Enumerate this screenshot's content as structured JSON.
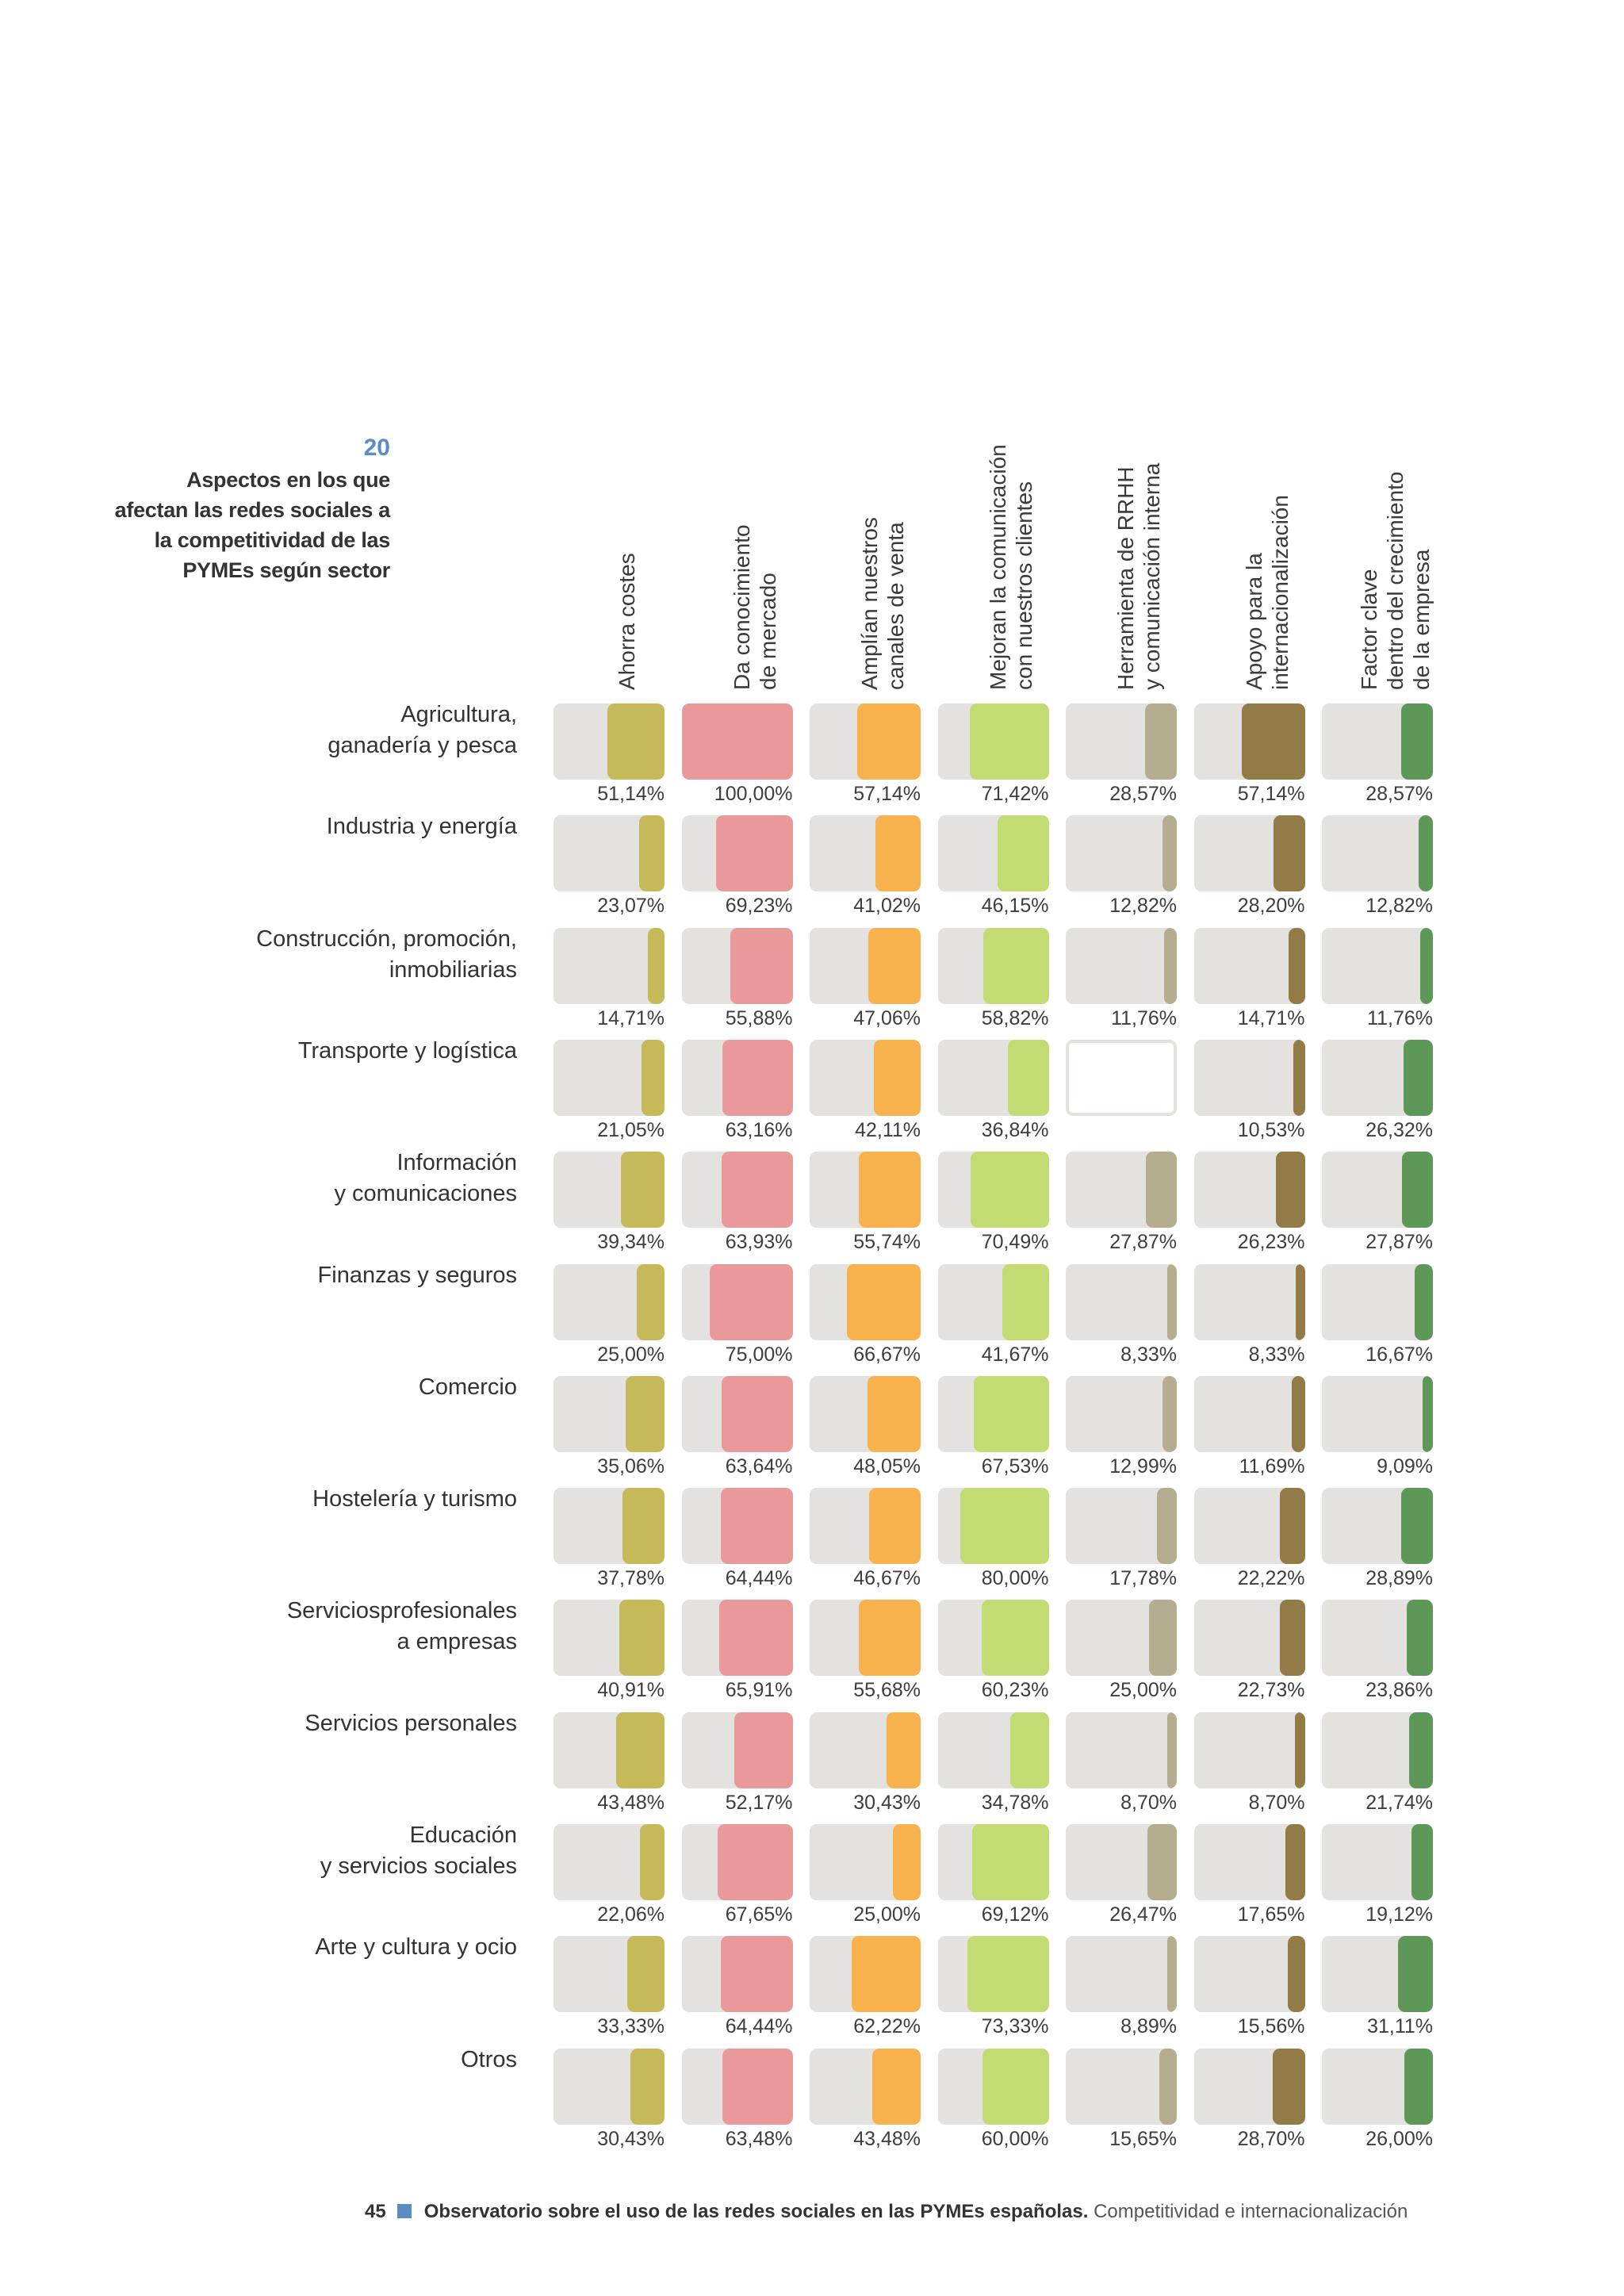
{
  "figure": {
    "number": "20",
    "title": "Aspectos en los que afectan las redes sociales a la competitividad de las PYMEs según sector"
  },
  "footer": {
    "page": "45",
    "bold_text": "Observatorio sobre el uso de las redes sociales en las PYMEs españolas.",
    "light_text": " Competitividad e internacionalización"
  },
  "chart_data": {
    "type": "heatmap",
    "title": "Aspectos en los que afectan las redes sociales a la competitividad de las PYMEs según sector",
    "columns": [
      {
        "label": "Ahorra costes",
        "color": "#c6b95a"
      },
      {
        "label": "Da conocimiento\nde mercado",
        "color": "#e9999a"
      },
      {
        "label": "Amplían nuestros\ncanales de venta",
        "color": "#f8b24d"
      },
      {
        "label": "Mejoran la comunicación\ncon nuestros clientes",
        "color": "#c3db73"
      },
      {
        "label": "Herramienta de RRHH\ny comunicación interna",
        "color": "#b4ad90"
      },
      {
        "label": "Apoyo para la\ninternacionalización",
        "color": "#937b48"
      },
      {
        "label": "Factor clave\ndentro del crecimiento\nde la empresa",
        "color": "#5e9858"
      }
    ],
    "rows": [
      {
        "label": "Agricultura,\nganadería y pesca",
        "values": [
          51.14,
          100.0,
          57.14,
          71.42,
          28.57,
          57.14,
          28.57
        ],
        "labels": [
          "51,14%",
          "100,00%",
          "57,14%",
          "71,42%",
          "28,57%",
          "57,14%",
          "28,57%"
        ]
      },
      {
        "label": "Industria y energía",
        "values": [
          23.07,
          69.23,
          41.02,
          46.15,
          12.82,
          28.2,
          12.82
        ],
        "labels": [
          "23,07%",
          "69,23%",
          "41,02%",
          "46,15%",
          "12,82%",
          "28,20%",
          "12,82%"
        ]
      },
      {
        "label": "Construcción, promoción,\ninmobiliarias",
        "values": [
          14.71,
          55.88,
          47.06,
          58.82,
          11.76,
          14.71,
          11.76
        ],
        "labels": [
          "14,71%",
          "55,88%",
          "47,06%",
          "58,82%",
          "11,76%",
          "14,71%",
          "11,76%"
        ]
      },
      {
        "label": "Transporte y logística",
        "values": [
          21.05,
          63.16,
          42.11,
          36.84,
          null,
          10.53,
          26.32
        ],
        "labels": [
          "21,05%",
          "63,16%",
          "42,11%",
          "36,84%",
          "",
          "10,53%",
          "26,32%"
        ]
      },
      {
        "label": "Información\ny comunicaciones",
        "values": [
          39.34,
          63.93,
          55.74,
          70.49,
          27.87,
          26.23,
          27.87
        ],
        "labels": [
          "39,34%",
          "63,93%",
          "55,74%",
          "70,49%",
          "27,87%",
          "26,23%",
          "27,87%"
        ]
      },
      {
        "label": "Finanzas y seguros",
        "values": [
          25.0,
          75.0,
          66.67,
          41.67,
          8.33,
          8.33,
          16.67
        ],
        "labels": [
          "25,00%",
          "75,00%",
          "66,67%",
          "41,67%",
          "8,33%",
          "8,33%",
          "16,67%"
        ]
      },
      {
        "label": "Comercio",
        "values": [
          35.06,
          63.64,
          48.05,
          67.53,
          12.99,
          11.69,
          9.09
        ],
        "labels": [
          "35,06%",
          "63,64%",
          "48,05%",
          "67,53%",
          "12,99%",
          "11,69%",
          "9,09%"
        ]
      },
      {
        "label": "Hostelería y turismo",
        "values": [
          37.78,
          64.44,
          46.67,
          80.0,
          17.78,
          22.22,
          28.89
        ],
        "labels": [
          "37,78%",
          "64,44%",
          "46,67%",
          "80,00%",
          "17,78%",
          "22,22%",
          "28,89%"
        ]
      },
      {
        "label": "Serviciosprofesionales\na empresas",
        "values": [
          40.91,
          65.91,
          55.68,
          60.23,
          25.0,
          22.73,
          23.86
        ],
        "labels": [
          "40,91%",
          "65,91%",
          "55,68%",
          "60,23%",
          "25,00%",
          "22,73%",
          "23,86%"
        ]
      },
      {
        "label": "Servicios personales",
        "values": [
          43.48,
          52.17,
          30.43,
          34.78,
          8.7,
          8.7,
          21.74
        ],
        "labels": [
          "43,48%",
          "52,17%",
          "30,43%",
          "34,78%",
          "8,70%",
          "8,70%",
          "21,74%"
        ]
      },
      {
        "label": "Educación\ny servicios sociales",
        "values": [
          22.06,
          67.65,
          25.0,
          69.12,
          26.47,
          17.65,
          19.12
        ],
        "labels": [
          "22,06%",
          "67,65%",
          "25,00%",
          "69,12%",
          "26,47%",
          "17,65%",
          "19,12%"
        ]
      },
      {
        "label": "Arte y cultura y ocio",
        "values": [
          33.33,
          64.44,
          62.22,
          73.33,
          8.89,
          15.56,
          31.11
        ],
        "labels": [
          "33,33%",
          "64,44%",
          "62,22%",
          "73,33%",
          "8,89%",
          "15,56%",
          "31,11%"
        ]
      },
      {
        "label": "Otros",
        "values": [
          30.43,
          63.48,
          43.48,
          60.0,
          15.65,
          28.7,
          26.0
        ],
        "labels": [
          "30,43%",
          "63,48%",
          "43,48%",
          "60,00%",
          "15,65%",
          "28,70%",
          "26,00%"
        ]
      }
    ],
    "value_range": [
      0,
      100
    ],
    "unit": "%"
  }
}
